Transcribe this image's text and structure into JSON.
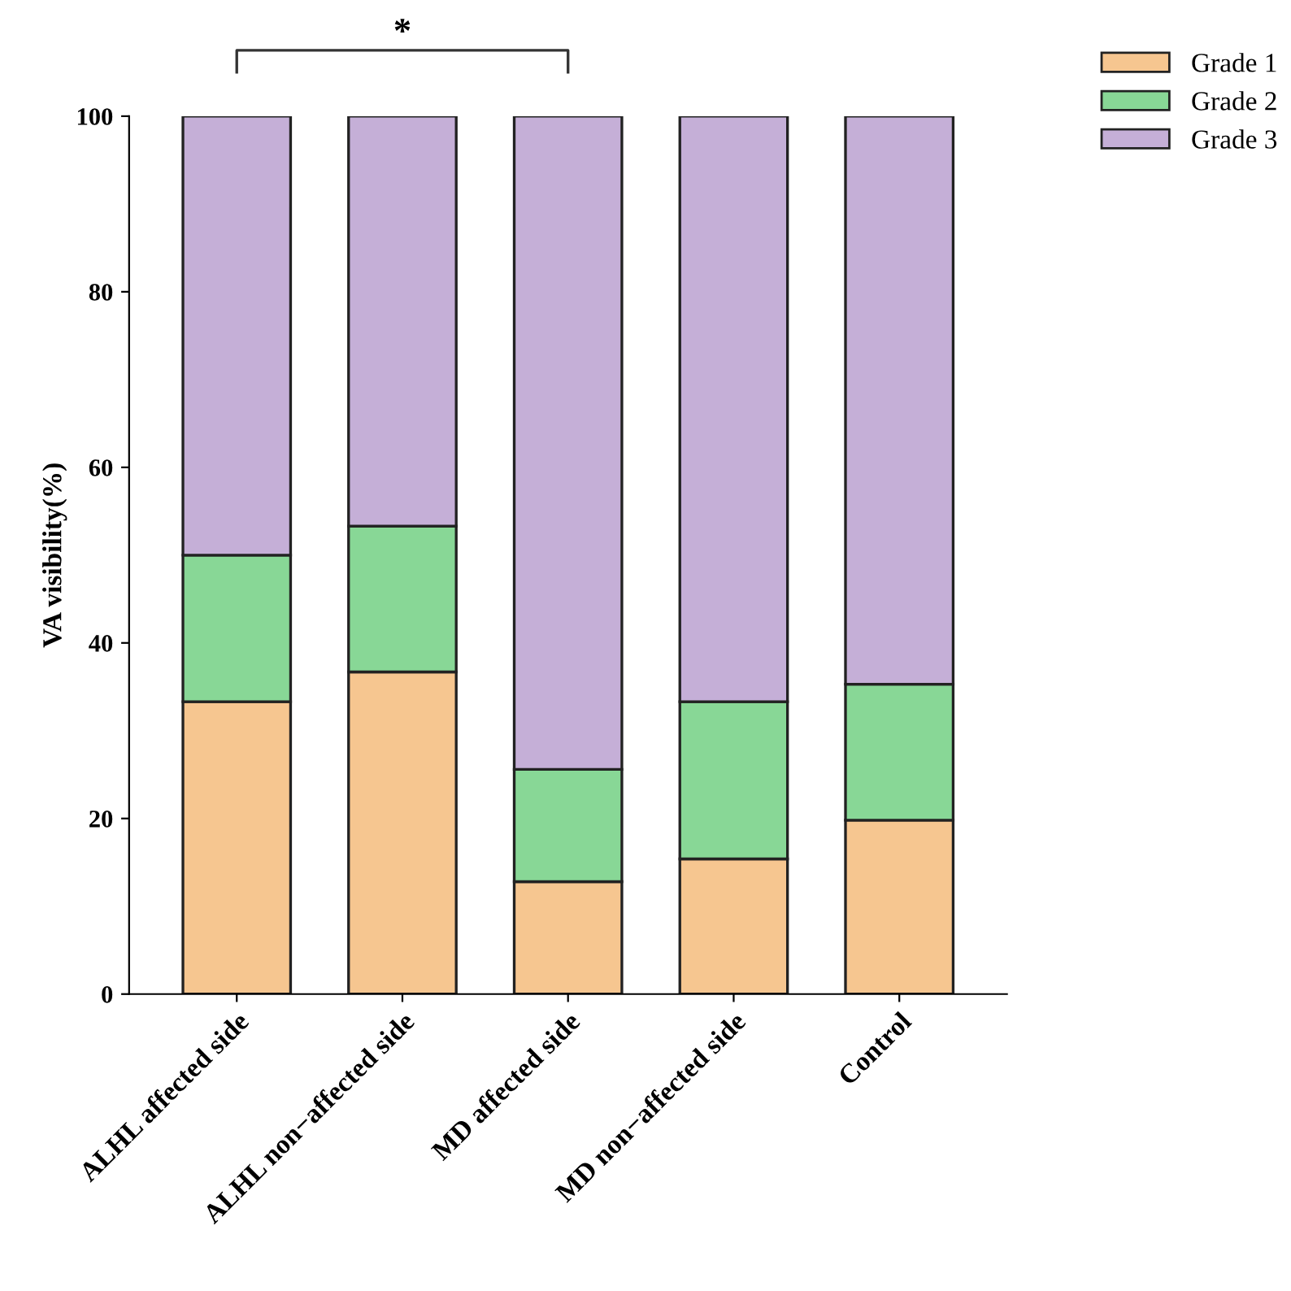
{
  "chart_data": {
    "type": "bar",
    "stacked": true,
    "ylabel": "VA visibility(%)",
    "categories": [
      "ALHL affected side",
      "ALHL non−affected side",
      "MD affected side",
      "MD non−affected side",
      "Control"
    ],
    "series": [
      {
        "name": "Grade 1",
        "color": "#f6c690",
        "values": [
          33.3,
          36.7,
          12.8,
          15.4,
          19.8
        ]
      },
      {
        "name": "Grade 2",
        "color": "#88d796",
        "values": [
          16.7,
          16.6,
          12.8,
          17.9,
          15.5
        ]
      },
      {
        "name": "Grade 3",
        "color": "#c5afd7",
        "values": [
          50.0,
          46.7,
          74.4,
          66.7,
          64.7
        ]
      }
    ],
    "ylim": [
      0,
      100
    ],
    "yticks": [
      0,
      20,
      40,
      60,
      80,
      100
    ],
    "grid": false,
    "legend": "top right",
    "annotations": [
      "*"
    ]
  }
}
